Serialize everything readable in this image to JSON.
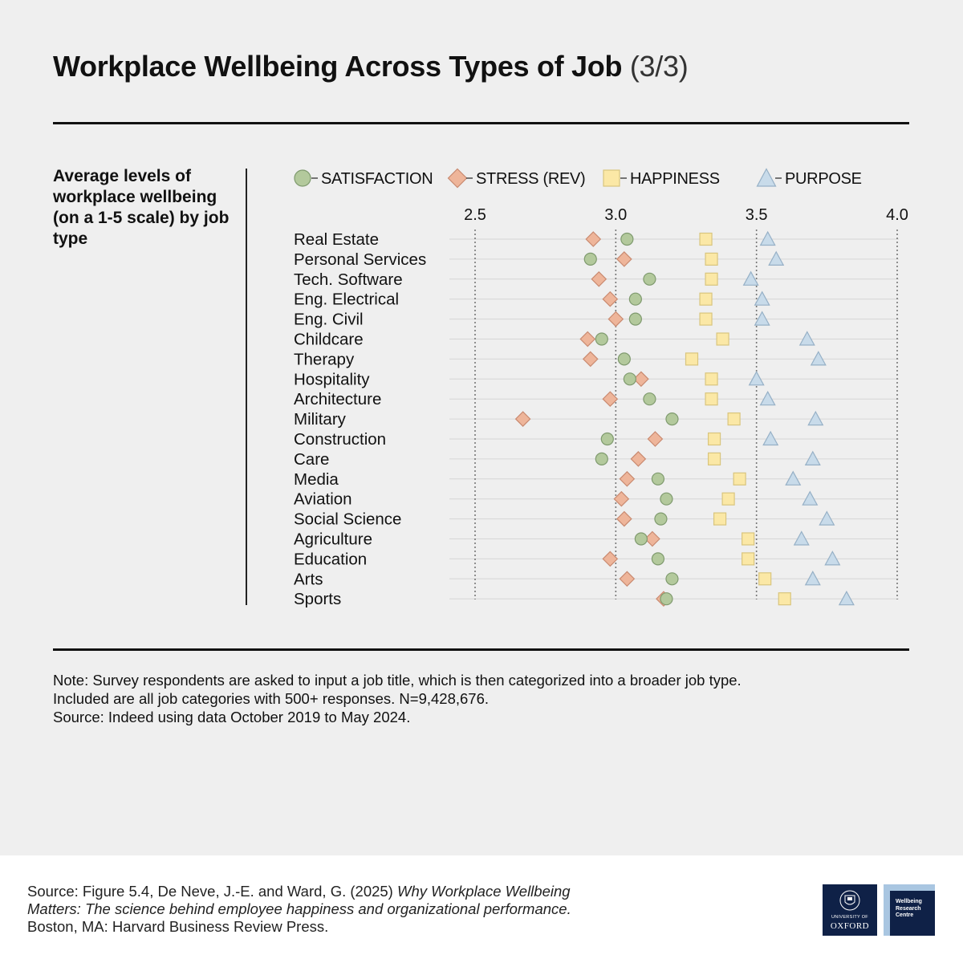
{
  "title": {
    "main": "Workplace Wellbeing Across Types of Job",
    "part": "(3/3)"
  },
  "side_label": "Average levels of workplace wellbeing (on a 1-5 scale) by job type",
  "notes": [
    "Note: Survey respondents are asked to input a job title, which is then categorized into a broader job type.",
    "Included are all job categories with 500+ responses. N=9,428,676.",
    "Source: Indeed using data October 2019 to May 2024."
  ],
  "footer": {
    "prefix": "Source: Figure 5.4, De Neve, J.-E. and Ward, G. (2025) ",
    "book_title": "Why Workplace Wellbeing Matters: The science behind employee happiness and organizational performance.",
    "suffix": " Boston, MA: Harvard Business Review Press."
  },
  "logos": {
    "oxford_line1": "UNIVERSITY OF",
    "oxford_line2": "OXFORD",
    "wrc": [
      "Wellbeing",
      "Research",
      "Centre"
    ]
  },
  "chart_data": {
    "type": "scatter",
    "orientation": "horizontal dot plot",
    "xlim": [
      2.5,
      4.0
    ],
    "ticks": [
      "2.5",
      "3.0",
      "3.5",
      "4.0"
    ],
    "grid": "dotted vertical at ticks",
    "legend_placement": "top",
    "categories": [
      "Real Estate",
      "Personal Services",
      "Tech. Software",
      "Eng. Electrical",
      "Eng. Civil",
      "Childcare",
      "Therapy",
      "Hospitality",
      "Architecture",
      "Military",
      "Construction",
      "Care",
      "Media",
      "Aviation",
      "Social Science",
      "Agriculture",
      "Education",
      "Arts",
      "Sports"
    ],
    "series": [
      {
        "name": "SATISFACTION",
        "marker": "circle",
        "fill": "#b3c99c",
        "stroke": "#7f9a6e",
        "values": [
          3.04,
          2.91,
          3.12,
          3.07,
          3.07,
          2.95,
          3.03,
          3.05,
          3.12,
          3.2,
          2.97,
          2.95,
          3.15,
          3.18,
          3.16,
          3.09,
          3.15,
          3.2,
          3.18
        ]
      },
      {
        "name": "STRESS (REV)",
        "marker": "diamond",
        "fill": "#eeb59a",
        "stroke": "#c98a70",
        "values": [
          2.92,
          3.03,
          2.94,
          2.98,
          3.0,
          2.9,
          2.91,
          3.09,
          2.98,
          2.67,
          3.14,
          3.08,
          3.04,
          3.02,
          3.03,
          3.13,
          2.98,
          3.04,
          3.17
        ]
      },
      {
        "name": "HAPPINESS",
        "marker": "square",
        "fill": "#fbe8a6",
        "stroke": "#d9c57e",
        "values": [
          3.32,
          3.34,
          3.34,
          3.32,
          3.32,
          3.38,
          3.27,
          3.34,
          3.34,
          3.42,
          3.35,
          3.35,
          3.44,
          3.4,
          3.37,
          3.47,
          3.47,
          3.53,
          3.6
        ]
      },
      {
        "name": "PURPOSE",
        "marker": "triangle",
        "fill": "#c8dbea",
        "stroke": "#96b0c6",
        "values": [
          3.54,
          3.57,
          3.48,
          3.52,
          3.52,
          3.68,
          3.72,
          3.5,
          3.54,
          3.71,
          3.55,
          3.7,
          3.63,
          3.69,
          3.75,
          3.66,
          3.77,
          3.7,
          3.82
        ]
      }
    ]
  }
}
